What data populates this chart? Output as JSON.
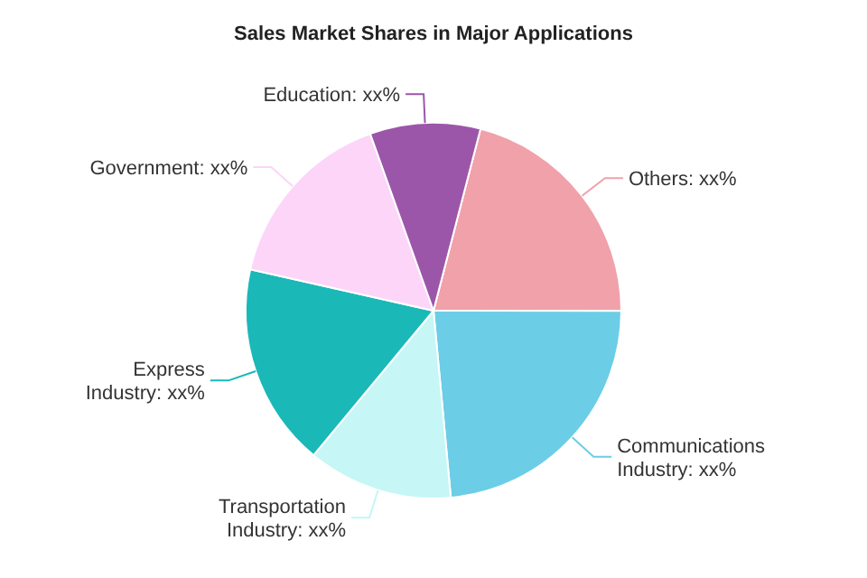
{
  "chart_data": {
    "type": "pie",
    "title": "Sales Market Shares in Major Applications",
    "categories": [
      "Others",
      "Communications Industry",
      "Transportation Industry",
      "Express Industry",
      "Government",
      "Education"
    ],
    "values": [
      21,
      23.5,
      12.5,
      17.5,
      16,
      9.5
    ],
    "value_labels": [
      "xx%",
      "xx%",
      "xx%",
      "xx%",
      "xx%",
      "xx%"
    ],
    "colors": [
      "#f0a1aa",
      "#6ccde6",
      "#c6f6f6",
      "#1bb8b8",
      "#fcd5f9",
      "#9c56a9"
    ]
  }
}
